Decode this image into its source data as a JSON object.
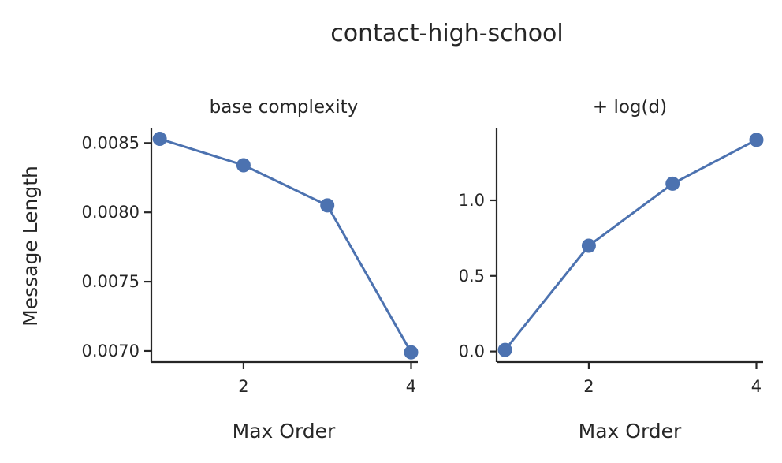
{
  "figure": {
    "title": "contact-high-school"
  },
  "chart_data": [
    {
      "type": "line",
      "title": "base complexity",
      "xlabel": "Max Order",
      "ylabel": "Message Length",
      "x": [
        1,
        2,
        3,
        4
      ],
      "series": [
        {
          "values": [
            0.00853,
            0.00834,
            0.00805,
            0.00699
          ],
          "color": "#4c72b0"
        }
      ],
      "xlim": [
        0.9,
        4.08
      ],
      "ylim": [
        0.00692,
        0.00861
      ],
      "xticks": [
        2,
        4
      ],
      "xtick_labels": [
        "2",
        "4"
      ],
      "yticks": [
        0.007,
        0.0075,
        0.008,
        0.0085
      ],
      "ytick_labels": [
        "0.0070",
        "0.0075",
        "0.0080",
        "0.0085"
      ],
      "grid": false,
      "legend": "none"
    },
    {
      "type": "line",
      "title": "+ log(d)",
      "xlabel": "Max Order",
      "ylabel": "",
      "x": [
        1,
        2,
        3,
        4
      ],
      "series": [
        {
          "values": [
            0.01,
            0.7,
            1.11,
            1.4
          ],
          "color": "#4c72b0"
        }
      ],
      "xlim": [
        0.9,
        4.08
      ],
      "ylim": [
        -0.07,
        1.48
      ],
      "xticks": [
        2,
        4
      ],
      "xtick_labels": [
        "2",
        "4"
      ],
      "yticks": [
        0,
        0.5,
        1.0
      ],
      "ytick_labels": [
        "0.0",
        "0.5",
        "1.0"
      ],
      "grid": false,
      "legend": "none"
    }
  ]
}
